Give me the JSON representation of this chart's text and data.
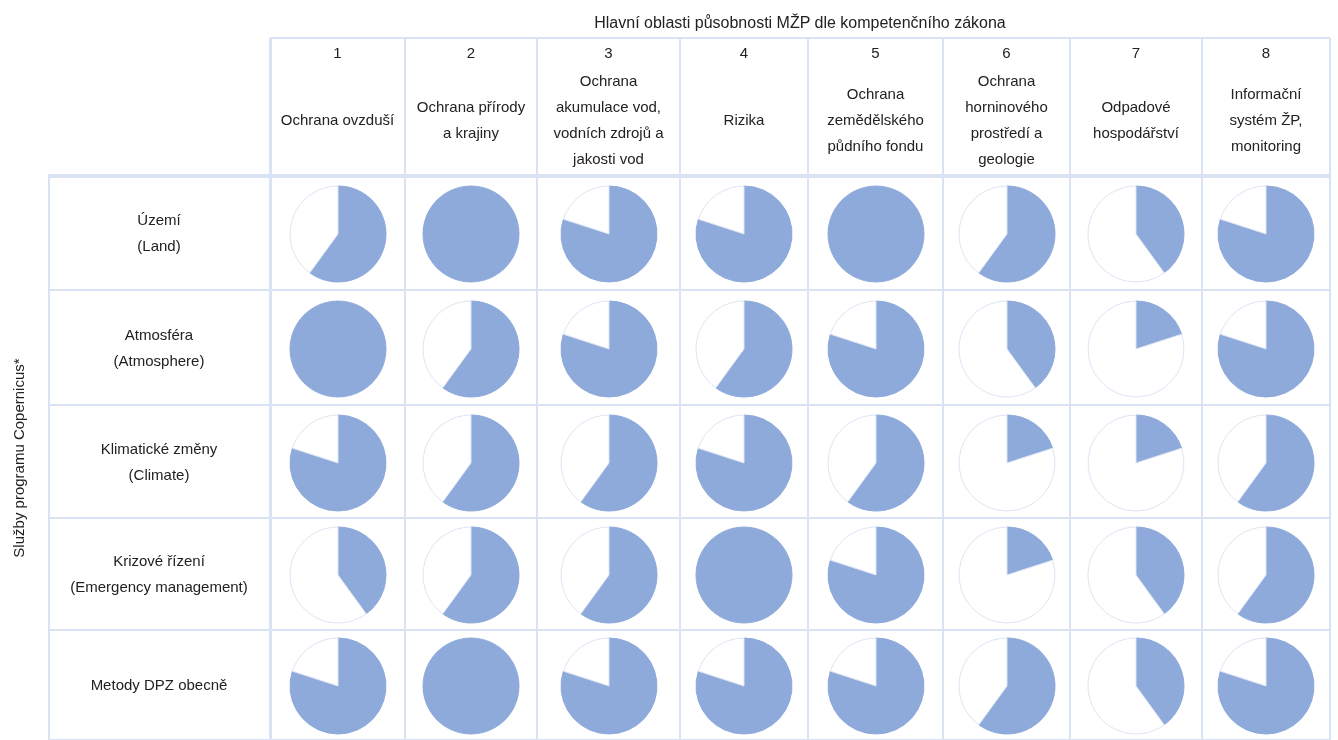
{
  "chart_data": [
    {
      "type": "pie",
      "title": "Ochrana ovzduší",
      "subtitle": "1",
      "ylabel": "Území\n(Land)",
      "annotations": [
        "Hlavní oblasti působnosti MŽP dle kompetenčního zákona",
        "Služby programu Copernicus*"
      ],
      "categories": [
        null,
        null
      ],
      "values": [
        60,
        40
      ],
      "colors": [
        "#8eaadb",
        "#ffffff"
      ]
    },
    {
      "type": "pie",
      "title": "Ochrana přírody a krajiny",
      "subtitle": "2",
      "categories": [
        null,
        null
      ],
      "values": [
        100,
        0
      ],
      "colors": [
        "#8eaadb",
        "#ffffff"
      ]
    },
    {
      "type": "pie",
      "title": "Ochrana akumulace vod, vodních zdrojů a jakosti vod",
      "subtitle": "3",
      "categories": [
        null,
        null
      ],
      "values": [
        80,
        20
      ],
      "colors": [
        "#8eaadb",
        "#ffffff"
      ]
    },
    {
      "type": "pie",
      "title": "Rizika",
      "subtitle": "4",
      "categories": [
        null,
        null
      ],
      "values": [
        80,
        20
      ],
      "colors": [
        "#8eaadb",
        "#ffffff"
      ]
    },
    {
      "type": "pie",
      "title": "Ochrana zemědělského půdního fondu",
      "subtitle": "5",
      "categories": [
        null,
        null
      ],
      "values": [
        100,
        0
      ],
      "colors": [
        "#8eaadb",
        "#ffffff"
      ]
    },
    {
      "type": "pie",
      "title": "Ochrana horninového prostředí a geologie",
      "subtitle": "6",
      "categories": [
        null,
        null
      ],
      "values": [
        60,
        40
      ],
      "colors": [
        "#8eaadb",
        "#ffffff"
      ]
    },
    {
      "type": "pie",
      "title": "Odpadové hospodářství",
      "subtitle": "7",
      "categories": [
        null,
        null
      ],
      "values": [
        40,
        60
      ],
      "colors": [
        "#8eaadb",
        "#ffffff"
      ]
    },
    {
      "type": "pie",
      "title": "Informační systém ŽP, monitoring",
      "subtitle": "8",
      "categories": [
        null,
        null
      ],
      "values": [
        80,
        20
      ],
      "colors": [
        "#8eaadb",
        "#ffffff"
      ]
    },
    {
      "type": "pie",
      "ylabel": "Atmosféra\n(Atmosphere)",
      "categories": [
        null,
        null
      ],
      "values": [
        100,
        0
      ],
      "colors": [
        "#8eaadb",
        "#ffffff"
      ]
    },
    {
      "type": "pie",
      "categories": [
        null,
        null
      ],
      "values": [
        60,
        40
      ],
      "colors": [
        "#8eaadb",
        "#ffffff"
      ]
    },
    {
      "type": "pie",
      "categories": [
        null,
        null
      ],
      "values": [
        80,
        20
      ],
      "colors": [
        "#8eaadb",
        "#ffffff"
      ]
    },
    {
      "type": "pie",
      "categories": [
        null,
        null
      ],
      "values": [
        60,
        40
      ],
      "colors": [
        "#8eaadb",
        "#ffffff"
      ]
    },
    {
      "type": "pie",
      "categories": [
        null,
        null
      ],
      "values": [
        80,
        20
      ],
      "colors": [
        "#8eaadb",
        "#ffffff"
      ]
    },
    {
      "type": "pie",
      "categories": [
        null,
        null
      ],
      "values": [
        40,
        60
      ],
      "colors": [
        "#8eaadb",
        "#ffffff"
      ]
    },
    {
      "type": "pie",
      "categories": [
        null,
        null
      ],
      "values": [
        20,
        80
      ],
      "colors": [
        "#8eaadb",
        "#ffffff"
      ]
    },
    {
      "type": "pie",
      "categories": [
        null,
        null
      ],
      "values": [
        80,
        20
      ],
      "colors": [
        "#8eaadb",
        "#ffffff"
      ]
    },
    {
      "type": "pie",
      "ylabel": "Klimatické změny\n(Climate)",
      "categories": [
        null,
        null
      ],
      "values": [
        80,
        20
      ],
      "colors": [
        "#8eaadb",
        "#ffffff"
      ]
    },
    {
      "type": "pie",
      "categories": [
        null,
        null
      ],
      "values": [
        60,
        40
      ],
      "colors": [
        "#8eaadb",
        "#ffffff"
      ]
    },
    {
      "type": "pie",
      "categories": [
        null,
        null
      ],
      "values": [
        60,
        40
      ],
      "colors": [
        "#8eaadb",
        "#ffffff"
      ]
    },
    {
      "type": "pie",
      "categories": [
        null,
        null
      ],
      "values": [
        80,
        20
      ],
      "colors": [
        "#8eaadb",
        "#ffffff"
      ]
    },
    {
      "type": "pie",
      "categories": [
        null,
        null
      ],
      "values": [
        60,
        40
      ],
      "colors": [
        "#8eaadb",
        "#ffffff"
      ]
    },
    {
      "type": "pie",
      "categories": [
        null,
        null
      ],
      "values": [
        20,
        80
      ],
      "colors": [
        "#8eaadb",
        "#ffffff"
      ]
    },
    {
      "type": "pie",
      "categories": [
        null,
        null
      ],
      "values": [
        20,
        80
      ],
      "colors": [
        "#8eaadb",
        "#ffffff"
      ]
    },
    {
      "type": "pie",
      "categories": [
        null,
        null
      ],
      "values": [
        60,
        40
      ],
      "colors": [
        "#8eaadb",
        "#ffffff"
      ]
    },
    {
      "type": "pie",
      "ylabel": "Krizové řízení\n(Emergency management)",
      "categories": [
        null,
        null
      ],
      "values": [
        40,
        60
      ],
      "colors": [
        "#8eaadb",
        "#ffffff"
      ]
    },
    {
      "type": "pie",
      "categories": [
        null,
        null
      ],
      "values": [
        60,
        40
      ],
      "colors": [
        "#8eaadb",
        "#ffffff"
      ]
    },
    {
      "type": "pie",
      "categories": [
        null,
        null
      ],
      "values": [
        60,
        40
      ],
      "colors": [
        "#8eaadb",
        "#ffffff"
      ]
    },
    {
      "type": "pie",
      "categories": [
        null,
        null
      ],
      "values": [
        100,
        0
      ],
      "colors": [
        "#8eaadb",
        "#ffffff"
      ]
    },
    {
      "type": "pie",
      "categories": [
        null,
        null
      ],
      "values": [
        80,
        20
      ],
      "colors": [
        "#8eaadb",
        "#ffffff"
      ]
    },
    {
      "type": "pie",
      "categories": [
        null,
        null
      ],
      "values": [
        20,
        80
      ],
      "colors": [
        "#8eaadb",
        "#ffffff"
      ]
    },
    {
      "type": "pie",
      "categories": [
        null,
        null
      ],
      "values": [
        40,
        60
      ],
      "colors": [
        "#8eaadb",
        "#ffffff"
      ]
    },
    {
      "type": "pie",
      "categories": [
        null,
        null
      ],
      "values": [
        60,
        40
      ],
      "colors": [
        "#8eaadb",
        "#ffffff"
      ]
    },
    {
      "type": "pie",
      "ylabel": "Metody DPZ obecně",
      "categories": [
        null,
        null
      ],
      "values": [
        80,
        20
      ],
      "colors": [
        "#8eaadb",
        "#ffffff"
      ]
    },
    {
      "type": "pie",
      "categories": [
        null,
        null
      ],
      "values": [
        100,
        0
      ],
      "colors": [
        "#8eaadb",
        "#ffffff"
      ]
    },
    {
      "type": "pie",
      "categories": [
        null,
        null
      ],
      "values": [
        80,
        20
      ],
      "colors": [
        "#8eaadb",
        "#ffffff"
      ]
    },
    {
      "type": "pie",
      "categories": [
        null,
        null
      ],
      "values": [
        80,
        20
      ],
      "colors": [
        "#8eaadb",
        "#ffffff"
      ]
    },
    {
      "type": "pie",
      "categories": [
        null,
        null
      ],
      "values": [
        80,
        20
      ],
      "colors": [
        "#8eaadb",
        "#ffffff"
      ]
    },
    {
      "type": "pie",
      "categories": [
        null,
        null
      ],
      "values": [
        60,
        40
      ],
      "colors": [
        "#8eaadb",
        "#ffffff"
      ]
    },
    {
      "type": "pie",
      "categories": [
        null,
        null
      ],
      "values": [
        40,
        60
      ],
      "colors": [
        "#8eaadb",
        "#ffffff"
      ]
    },
    {
      "type": "pie",
      "categories": [
        null,
        null
      ],
      "values": [
        80,
        20
      ],
      "colors": [
        "#8eaadb",
        "#ffffff"
      ]
    }
  ]
}
